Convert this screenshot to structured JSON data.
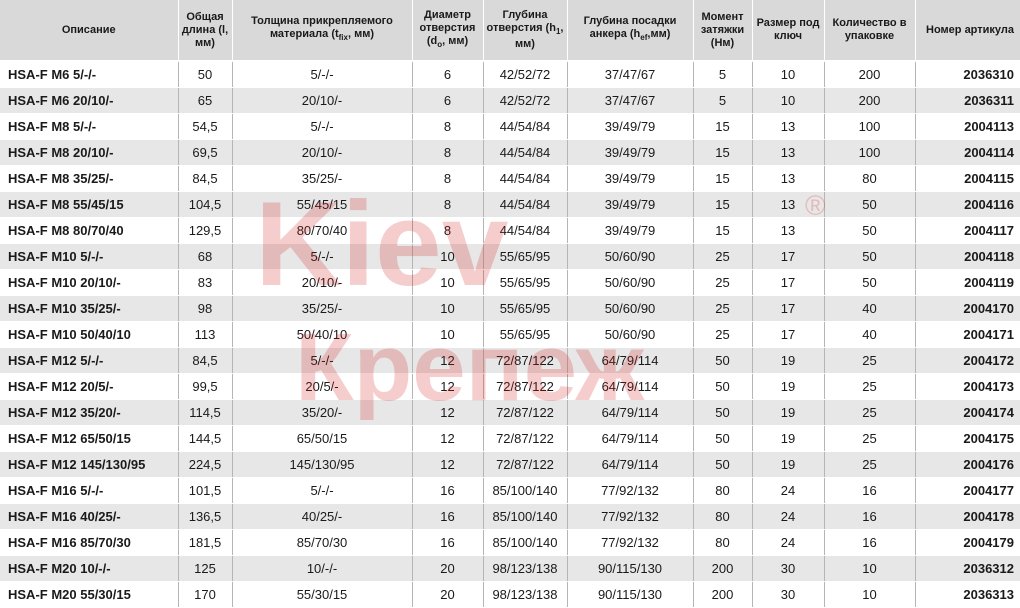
{
  "headers": [
    {
      "text": "Описание"
    },
    {
      "text": "Общая длина (l, мм)"
    },
    {
      "pre": "Толщина прикрепляемого материала (t",
      "sub": "fix",
      "post": ", мм)"
    },
    {
      "pre": "Диаметр отверстия (d",
      "sub": "o",
      "post": ", мм)"
    },
    {
      "pre": "Глубина отверстия (h",
      "sub": "1",
      "post": ", мм)"
    },
    {
      "pre": "Глубина посадки анкера (h",
      "sub": "ef",
      "post": ",мм)"
    },
    {
      "text": "Момент затяжки (Нм)"
    },
    {
      "text": "Размер под ключ"
    },
    {
      "text": "Количество в упаковке"
    },
    {
      "text": "Номер артикула"
    }
  ],
  "rows": [
    [
      "HSA-F M6 5/-/-",
      "50",
      "5/-/-",
      "6",
      "42/52/72",
      "37/47/67",
      "5",
      "10",
      "200",
      "2036310"
    ],
    [
      "HSA-F M6 20/10/-",
      "65",
      "20/10/-",
      "6",
      "42/52/72",
      "37/47/67",
      "5",
      "10",
      "200",
      "2036311"
    ],
    [
      "HSA-F M8 5/-/-",
      "54,5",
      "5/-/-",
      "8",
      "44/54/84",
      "39/49/79",
      "15",
      "13",
      "100",
      "2004113"
    ],
    [
      "HSA-F M8 20/10/-",
      "69,5",
      "20/10/-",
      "8",
      "44/54/84",
      "39/49/79",
      "15",
      "13",
      "100",
      "2004114"
    ],
    [
      "HSA-F M8 35/25/-",
      "84,5",
      "35/25/-",
      "8",
      "44/54/84",
      "39/49/79",
      "15",
      "13",
      "80",
      "2004115"
    ],
    [
      "HSA-F M8 55/45/15",
      "104,5",
      "55/45/15",
      "8",
      "44/54/84",
      "39/49/79",
      "15",
      "13",
      "50",
      "2004116"
    ],
    [
      "HSA-F M8 80/70/40",
      "129,5",
      "80/70/40",
      "8",
      "44/54/84",
      "39/49/79",
      "15",
      "13",
      "50",
      "2004117"
    ],
    [
      "HSA-F M10 5/-/-",
      "68",
      "5/-/-",
      "10",
      "55/65/95",
      "50/60/90",
      "25",
      "17",
      "50",
      "2004118"
    ],
    [
      "HSA-F M10 20/10/-",
      "83",
      "20/10/-",
      "10",
      "55/65/95",
      "50/60/90",
      "25",
      "17",
      "50",
      "2004119"
    ],
    [
      "HSA-F M10 35/25/-",
      "98",
      "35/25/-",
      "10",
      "55/65/95",
      "50/60/90",
      "25",
      "17",
      "40",
      "2004170"
    ],
    [
      "HSA-F M10 50/40/10",
      "113",
      "50/40/10",
      "10",
      "55/65/95",
      "50/60/90",
      "25",
      "17",
      "40",
      "2004171"
    ],
    [
      "HSA-F M12 5/-/-",
      "84,5",
      "5/-/-",
      "12",
      "72/87/122",
      "64/79/114",
      "50",
      "19",
      "25",
      "2004172"
    ],
    [
      "HSA-F M12 20/5/-",
      "99,5",
      "20/5/-",
      "12",
      "72/87/122",
      "64/79/114",
      "50",
      "19",
      "25",
      "2004173"
    ],
    [
      "HSA-F M12 35/20/-",
      "114,5",
      "35/20/-",
      "12",
      "72/87/122",
      "64/79/114",
      "50",
      "19",
      "25",
      "2004174"
    ],
    [
      "HSA-F M12 65/50/15",
      "144,5",
      "65/50/15",
      "12",
      "72/87/122",
      "64/79/114",
      "50",
      "19",
      "25",
      "2004175"
    ],
    [
      "HSA-F M12 145/130/95",
      "224,5",
      "145/130/95",
      "12",
      "72/87/122",
      "64/79/114",
      "50",
      "19",
      "25",
      "2004176"
    ],
    [
      "HSA-F M16 5/-/-",
      "101,5",
      "5/-/-",
      "16",
      "85/100/140",
      "77/92/132",
      "80",
      "24",
      "16",
      "2004177"
    ],
    [
      "HSA-F M16 40/25/-",
      "136,5",
      "40/25/-",
      "16",
      "85/100/140",
      "77/92/132",
      "80",
      "24",
      "16",
      "2004178"
    ],
    [
      "HSA-F M16 85/70/30",
      "181,5",
      "85/70/30",
      "16",
      "85/100/140",
      "77/92/132",
      "80",
      "24",
      "16",
      "2004179"
    ],
    [
      "HSA-F M20 10/-/-",
      "125",
      "10/-/-",
      "20",
      "98/123/138",
      "90/115/130",
      "200",
      "30",
      "10",
      "2036312"
    ],
    [
      "HSA-F M20 55/30/15",
      "170",
      "55/30/15",
      "20",
      "98/123/138",
      "90/115/130",
      "200",
      "30",
      "10",
      "2036313"
    ]
  ],
  "watermark": {
    "line1": "Kiev",
    "line2": "Крепеж",
    "mark": "®",
    "color": "#d42020"
  }
}
